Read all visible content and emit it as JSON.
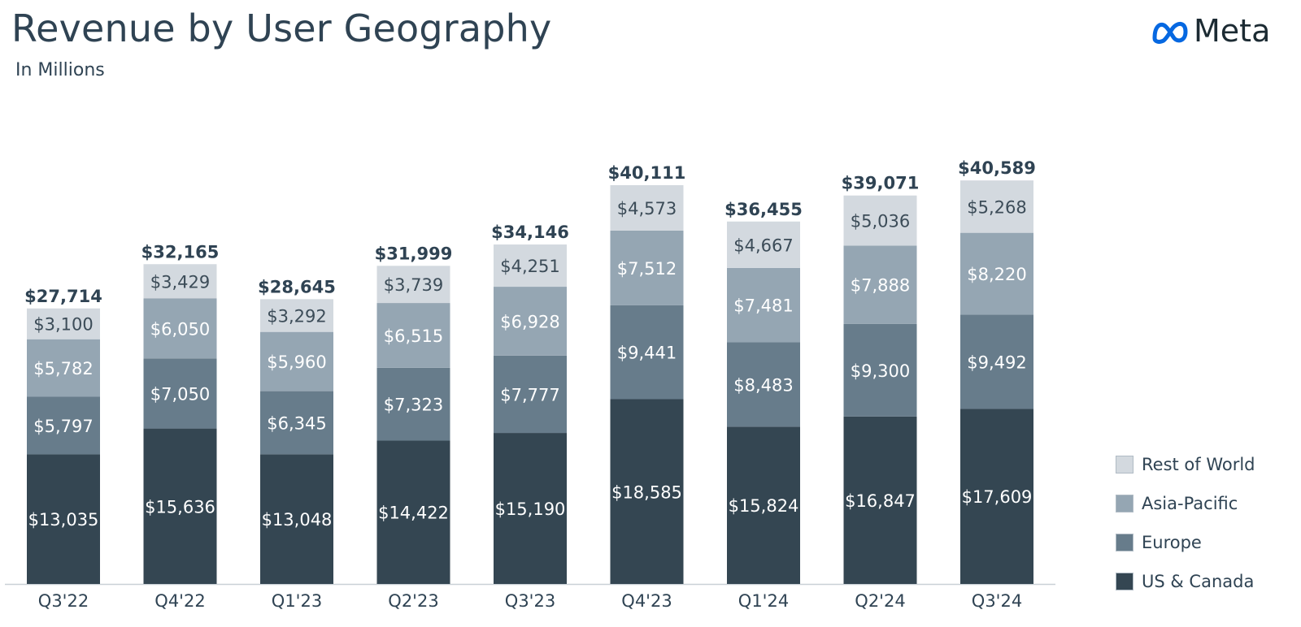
{
  "header": {
    "title": "Revenue by User Geography",
    "subtitle": "In Millions"
  },
  "logo": {
    "text": "Meta",
    "icon": "meta-infinity-icon",
    "color": "#0668E1"
  },
  "colors": {
    "us_canada": "#344652",
    "europe": "#677c8b",
    "asia_pacific": "#95a6b3",
    "rest_of_world": "#d3d9df",
    "axis": "#c9d0d6",
    "text_dark": "#2f4353"
  },
  "chart_data": {
    "type": "bar",
    "stacked": true,
    "title": "Revenue by User Geography",
    "subtitle": "In Millions",
    "categories": [
      "Q3'22",
      "Q4'22",
      "Q1'23",
      "Q2'23",
      "Q3'23",
      "Q4'23",
      "Q1'24",
      "Q2'24",
      "Q3'24"
    ],
    "series": [
      {
        "name": "US & Canada",
        "values": [
          13035,
          15636,
          13048,
          14422,
          15190,
          18585,
          15824,
          16847,
          17609
        ],
        "labels": [
          "$13,035",
          "$15,636",
          "$13,048",
          "$14,422",
          "$15,190",
          "$18,585",
          "$15,824",
          "$16,847",
          "$17,609"
        ]
      },
      {
        "name": "Europe",
        "values": [
          5797,
          7050,
          6345,
          7323,
          7777,
          9441,
          8483,
          9300,
          9492
        ],
        "labels": [
          "$5,797",
          "$7,050",
          "$6,345",
          "$7,323",
          "$7,777",
          "$9,441",
          "$8,483",
          "$9,300",
          "$9,492"
        ]
      },
      {
        "name": "Asia-Pacific",
        "values": [
          5782,
          6050,
          5960,
          6515,
          6928,
          7512,
          7481,
          7888,
          8220
        ],
        "labels": [
          "$5,782",
          "$6,050",
          "$5,960",
          "$6,515",
          "$6,928",
          "$7,512",
          "$7,481",
          "$7,888",
          "$8,220"
        ]
      },
      {
        "name": "Rest of World",
        "values": [
          3100,
          3429,
          3292,
          3739,
          4251,
          4573,
          4667,
          5036,
          5268
        ],
        "labels": [
          "$3,100",
          "$3,429",
          "$3,292",
          "$3,739",
          "$4,251",
          "$4,573",
          "$4,667",
          "$5,036",
          "$5,268"
        ]
      }
    ],
    "totals": [
      27714,
      32165,
      28645,
      31999,
      34146,
      40111,
      36455,
      39071,
      40589
    ],
    "total_labels": [
      "$27,714",
      "$32,165",
      "$28,645",
      "$31,999",
      "$34,146",
      "$40,111",
      "$36,455",
      "$39,071",
      "$40,589"
    ],
    "legend": {
      "position": "right",
      "items": [
        "Rest of World",
        "Asia-Pacific",
        "Europe",
        "US & Canada"
      ]
    },
    "grid": false
  }
}
